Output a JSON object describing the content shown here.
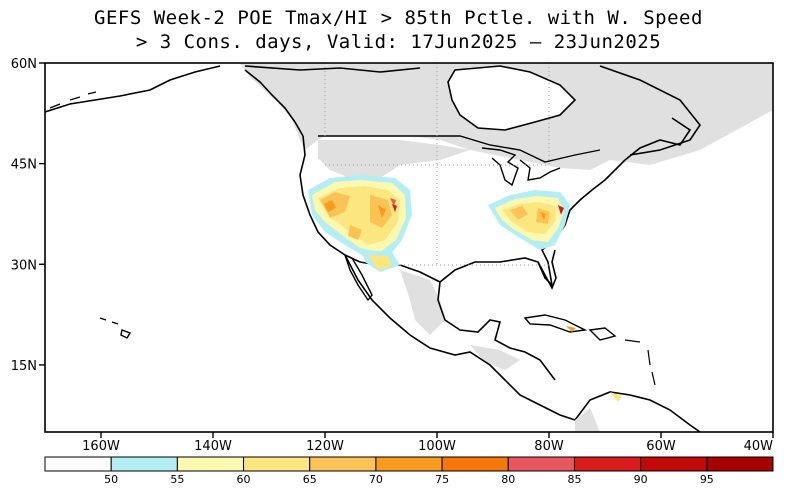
{
  "title": {
    "line1": "GEFS Week-2 POE Tmax/HI > 85th Pctle. with W. Speed",
    "line2": "> 3 Cons. days, Valid: 17Jun2025 – 23Jun2025"
  },
  "map": {
    "lon_range": [
      -170,
      -40
    ],
    "lat_range": [
      5,
      60
    ],
    "lat_ticks": [
      "60N",
      "45N",
      "30N",
      "15N"
    ],
    "lon_ticks": [
      "160W",
      "140W",
      "120W",
      "100W",
      "80W",
      "60W",
      "40W"
    ],
    "land_color": "#ffffff",
    "no_data_color": "#e0e0e0",
    "grid": true
  },
  "colorbar": {
    "colors": [
      "#ffffff",
      "#b3eef5",
      "#fdf8b0",
      "#fce680",
      "#fbc356",
      "#f99b1f",
      "#f5760a",
      "#e8565e",
      "#d91a1a",
      "#c20a0a",
      "#a60000"
    ],
    "labels": [
      "50",
      "55",
      "60",
      "65",
      "70",
      "75",
      "80",
      "85",
      "90",
      "95"
    ]
  }
}
